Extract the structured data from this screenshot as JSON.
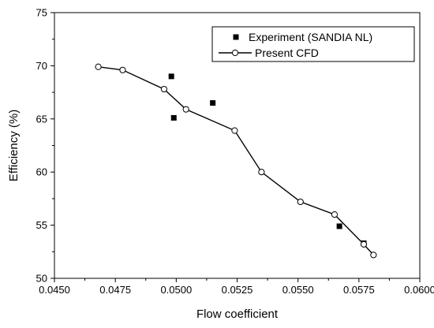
{
  "chart_data": {
    "type": "scatter",
    "title": "",
    "xlabel": "Flow coefficient",
    "ylabel": "Efficiency (%)",
    "xlim": [
      0.045,
      0.06
    ],
    "ylim": [
      50,
      75
    ],
    "xticks": [
      "0.0450",
      "0.0475",
      "0.0500",
      "0.0525",
      "0.0550",
      "0.0575",
      "0.0600"
    ],
    "yticks": [
      "50",
      "55",
      "60",
      "65",
      "70",
      "75"
    ],
    "grid": false,
    "legend_position": "top-right",
    "series": [
      {
        "name": "Experiment (SANDIA NL)",
        "marker": "filled-square",
        "line": false,
        "color": "#000000",
        "points": [
          {
            "x": 0.0498,
            "y": 69.0
          },
          {
            "x": 0.0499,
            "y": 65.1
          },
          {
            "x": 0.0515,
            "y": 66.5
          },
          {
            "x": 0.0567,
            "y": 54.9
          },
          {
            "x": 0.0577,
            "y": 53.3
          }
        ]
      },
      {
        "name": "Present CFD",
        "marker": "open-circle",
        "line": true,
        "color": "#000000",
        "points": [
          {
            "x": 0.0468,
            "y": 69.9
          },
          {
            "x": 0.0478,
            "y": 69.6
          },
          {
            "x": 0.0495,
            "y": 67.8
          },
          {
            "x": 0.0504,
            "y": 65.9
          },
          {
            "x": 0.0524,
            "y": 63.9
          },
          {
            "x": 0.0535,
            "y": 60.0
          },
          {
            "x": 0.0551,
            "y": 57.2
          },
          {
            "x": 0.0565,
            "y": 56.0
          },
          {
            "x": 0.0577,
            "y": 53.2
          },
          {
            "x": 0.0581,
            "y": 52.2
          }
        ]
      }
    ]
  }
}
